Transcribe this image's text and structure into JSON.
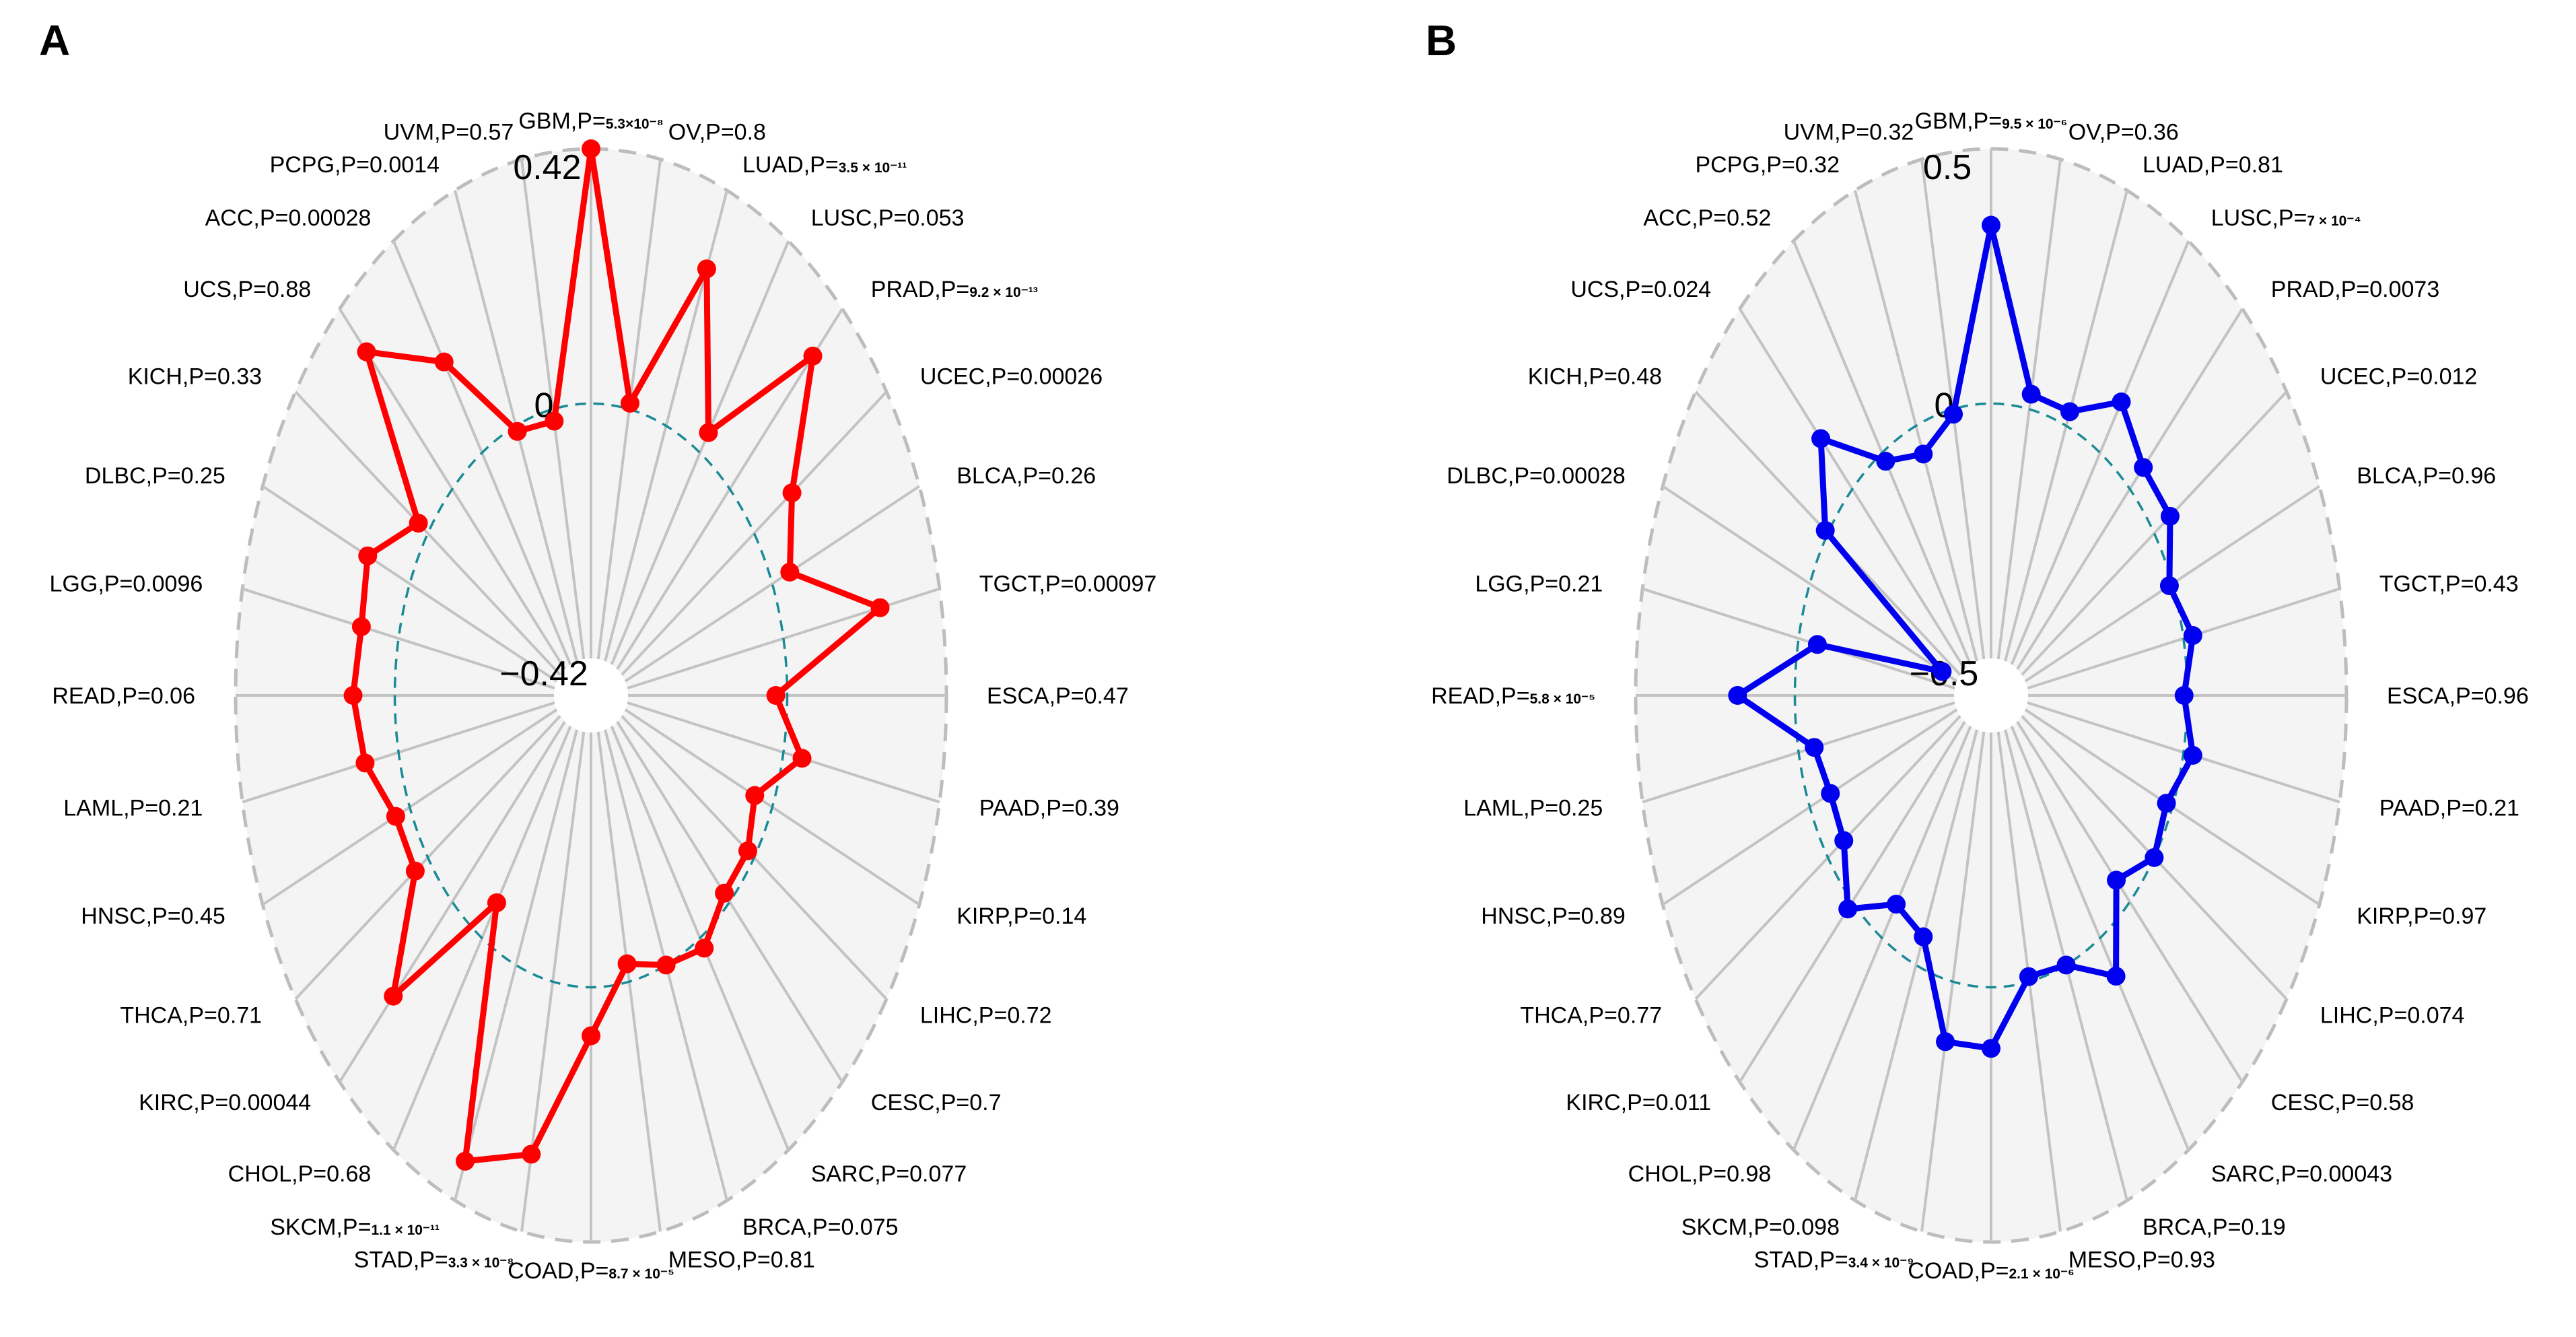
{
  "chart_data": [
    {
      "type": "radar",
      "panel": "A",
      "color": "#ff0000",
      "rlim": [
        -0.42,
        0.42
      ],
      "ring_labels": {
        "max": "0.42",
        "zero": "0",
        "min": "−0.42"
      },
      "categories": [
        {
          "code": "GBM",
          "p": "5.3×10⁻⁸",
          "p_style": "small",
          "value": 0.42
        },
        {
          "code": "OV",
          "p": "0.8",
          "value": 0.01
        },
        {
          "code": "LUAD",
          "p": "3.5 × 10⁻¹¹",
          "p_style": "small",
          "value": 0.28
        },
        {
          "code": "LUSC",
          "p": "0.053",
          "value": 0.04
        },
        {
          "code": "PRAD",
          "p": "9.2 × 10⁻¹³",
          "p_style": "small",
          "value": 0.31
        },
        {
          "code": "UCEC",
          "p": "0.00026",
          "value": 0.12
        },
        {
          "code": "BLCA",
          "p": "0.26",
          "value": 0.05
        },
        {
          "code": "TGCT",
          "p": "0.00097",
          "value": 0.26
        },
        {
          "code": "ESCA",
          "p": "0.47",
          "value": -0.03
        },
        {
          "code": "PAAD",
          "p": "0.39",
          "value": 0.05
        },
        {
          "code": "KIRP",
          "p": "0.14",
          "value": -0.05
        },
        {
          "code": "LIHC",
          "p": "0.72",
          "value": -0.02
        },
        {
          "code": "CESC",
          "p": "0.7",
          "value": -0.02
        },
        {
          "code": "SARC",
          "p": "0.077",
          "value": 0.02
        },
        {
          "code": "BRCA",
          "p": "0.075",
          "value": 0.0
        },
        {
          "code": "MESO",
          "p": "0.81",
          "value": -0.03
        },
        {
          "code": "COAD",
          "p": "8.7 × 10⁻⁵",
          "p_style": "small",
          "value": 0.08
        },
        {
          "code": "STAD",
          "p": "3.3 × 10⁻⁸",
          "p_style": "small",
          "value": 0.29
        },
        {
          "code": "SKCM",
          "p": "1.1 × 10⁻¹¹",
          "p_style": "small",
          "value": 0.35
        },
        {
          "code": "CHOL",
          "p": "0.68",
          "value": -0.07
        },
        {
          "code": "KIRC",
          "p": "0.00044",
          "value": 0.22
        },
        {
          "code": "THCA",
          "p": "0.71",
          "value": 0.04
        },
        {
          "code": "HNSC",
          "p": "0.45",
          "value": 0.04
        },
        {
          "code": "LAML",
          "p": "0.21",
          "value": 0.09
        },
        {
          "code": "READ",
          "p": "0.06",
          "value": 0.11
        },
        {
          "code": "LGG",
          "p": "0.0096",
          "value": 0.1
        },
        {
          "code": "DLBC",
          "p": "0.25",
          "value": 0.12
        },
        {
          "code": "KICH",
          "p": "0.33",
          "value": 0.03
        },
        {
          "code": "UCS",
          "p": "0.88",
          "value": 0.32
        },
        {
          "code": "ACC",
          "p": "0.00028",
          "value": 0.18
        },
        {
          "code": "PCPG",
          "p": "0.0014",
          "value": -0.01
        },
        {
          "code": "UVM",
          "p": "0.57",
          "value": -0.02
        }
      ]
    },
    {
      "type": "radar",
      "panel": "B",
      "color": "#0000ee",
      "rlim": [
        -0.5,
        0.5
      ],
      "ring_labels": {
        "max": "0.5",
        "zero": "0",
        "min": "−0.5"
      },
      "categories": [
        {
          "code": "GBM",
          "p": "9.5 × 10⁻⁶",
          "p_style": "small",
          "value": 0.35
        },
        {
          "code": "OV",
          "p": "0.36",
          "value": 0.03
        },
        {
          "code": "LUAD",
          "p": "0.81",
          "value": 0.03
        },
        {
          "code": "LUSC",
          "p": "7 × 10⁻⁴",
          "p_style": "small",
          "value": 0.12
        },
        {
          "code": "PRAD",
          "p": "0.0073",
          "value": 0.06
        },
        {
          "code": "UCEC",
          "p": "0.012",
          "value": 0.06
        },
        {
          "code": "BLCA",
          "p": "0.96",
          "value": -0.01
        },
        {
          "code": "TGCT",
          "p": "0.43",
          "value": 0.03
        },
        {
          "code": "ESCA",
          "p": "0.96",
          "value": -0.01
        },
        {
          "code": "PAAD",
          "p": "0.21",
          "value": 0.03
        },
        {
          "code": "KIRP",
          "p": "0.97",
          "value": -0.02
        },
        {
          "code": "LIHC",
          "p": "0.074",
          "value": 0.0
        },
        {
          "code": "CESC",
          "p": "0.58",
          "value": -0.06
        },
        {
          "code": "SARC",
          "p": "0.00043",
          "value": 0.09
        },
        {
          "code": "BRCA",
          "p": "0.19",
          "value": 0.0
        },
        {
          "code": "MESO",
          "p": "0.93",
          "value": -0.01
        },
        {
          "code": "COAD",
          "p": "2.1 × 10⁻⁶",
          "p_style": "small",
          "value": 0.12
        },
        {
          "code": "STAD",
          "p": "3.4 × 10⁻⁹",
          "p_style": "small",
          "value": 0.12
        },
        {
          "code": "SKCM",
          "p": "0.098",
          "value": -0.06
        },
        {
          "code": "CHOL",
          "p": "0.98",
          "value": -0.08
        },
        {
          "code": "KIRC",
          "p": "0.011",
          "value": 0.02
        },
        {
          "code": "THCA",
          "p": "0.77",
          "value": -0.06
        },
        {
          "code": "HNSC",
          "p": "0.89",
          "value": -0.07
        },
        {
          "code": "LAML",
          "p": "0.25",
          "value": -0.05
        },
        {
          "code": "READ",
          "p": "5.8 × 10⁻⁵",
          "p_style": "small",
          "value": 0.18
        },
        {
          "code": "LGG",
          "p": "0.21",
          "value": -0.06
        },
        {
          "code": "DLBC",
          "p": "0.00028",
          "value": -0.45
        },
        {
          "code": "KICH",
          "p": "0.48",
          "value": 0.01
        },
        {
          "code": "UCS",
          "p": "0.024",
          "value": 0.14
        },
        {
          "code": "ACC",
          "p": "0.52",
          "value": -0.02
        },
        {
          "code": "PCPG",
          "p": "0.32",
          "value": -0.06
        },
        {
          "code": "UVM",
          "p": "0.32",
          "value": -0.01
        }
      ]
    }
  ]
}
